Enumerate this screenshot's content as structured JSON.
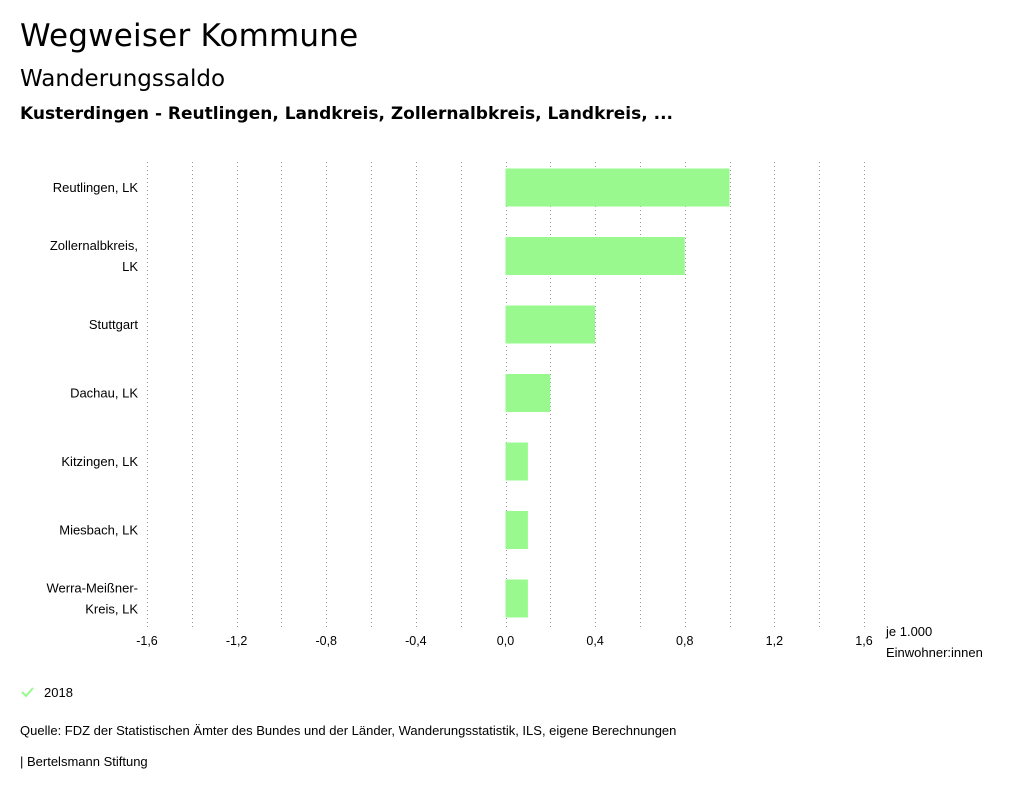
{
  "header": {
    "title": "Wegweiser Kommune",
    "subtitle": "Wanderungssaldo",
    "region": "Kusterdingen - Reutlingen, Landkreis, Zollernalbkreis, Landkreis, ..."
  },
  "chart_data": {
    "type": "bar",
    "orientation": "horizontal",
    "categories": [
      [
        "Reutlingen, LK"
      ],
      [
        "Zollernalbkreis,",
        "LK"
      ],
      [
        "Stuttgart"
      ],
      [
        "Dachau, LK"
      ],
      [
        "Kitzingen, LK"
      ],
      [
        "Miesbach, LK"
      ],
      [
        "Werra-Meißner-",
        "Kreis, LK"
      ]
    ],
    "series": [
      {
        "name": "2018",
        "values": [
          1.0,
          0.8,
          0.4,
          0.2,
          0.1,
          0.1,
          0.1
        ]
      }
    ],
    "xlim": [
      -1.6,
      1.6
    ],
    "major_ticks": [
      "-1,6",
      "-1,2",
      "-0,8",
      "-0,4",
      "0,0",
      "0,4",
      "0,8",
      "1,2",
      "1,6"
    ],
    "unit_label": [
      "je 1.000",
      "Einwohner:innen"
    ],
    "grid": true
  },
  "colors": {
    "bar": "#99f98f",
    "grid": "#999999"
  },
  "legend": {
    "icon": "check-icon",
    "label": "2018"
  },
  "footer": {
    "source": "Quelle: FDZ der Statistischen Ämter des Bundes und der Länder, Wanderungsstatistik, ILS, eigene Berechnungen",
    "credit": "| Bertelsmann Stiftung"
  }
}
